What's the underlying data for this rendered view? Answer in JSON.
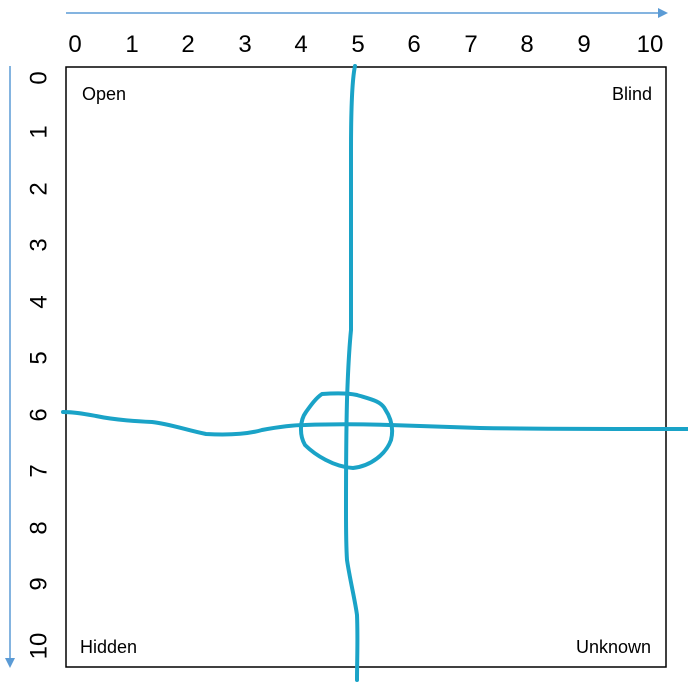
{
  "window": {
    "quadrants": {
      "top_left": "Open",
      "top_right": "Blind",
      "bottom_left": "Hidden",
      "bottom_right": "Unknown"
    },
    "x_ticks": [
      "0",
      "1",
      "2",
      "3",
      "4",
      "5",
      "6",
      "7",
      "8",
      "9",
      "10"
    ],
    "y_ticks": [
      "0",
      "1",
      "2",
      "3",
      "4",
      "5",
      "6",
      "7",
      "8",
      "9",
      "10"
    ]
  },
  "colors": {
    "axis_arrow": "#5b9bd5",
    "drawing": "#1aa3c7",
    "grid_border": "#000000"
  }
}
